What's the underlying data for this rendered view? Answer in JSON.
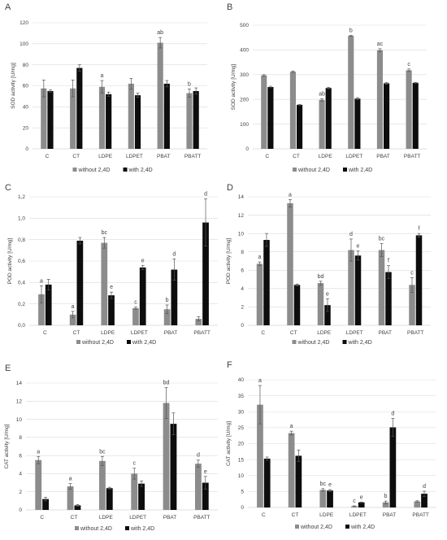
{
  "colors": {
    "without": "#8c8c8c",
    "with": "#0d0d0d",
    "error": "#555555"
  },
  "legend": {
    "without": "without 2,4D",
    "with": "with 2,4D"
  },
  "chart_data": [
    {
      "panel": "A",
      "type": "bar",
      "ylabel": "SOD activity [U/mg]",
      "ylim": [
        0,
        120
      ],
      "yticks": [
        0,
        20,
        40,
        60,
        80,
        100,
        120
      ],
      "categories": [
        "C",
        "CT",
        "LDPE",
        "LDPET",
        "PBAT",
        "PBATT"
      ],
      "series": [
        {
          "name": "without 2,4D",
          "values": [
            57.5,
            57.5,
            59,
            62,
            101,
            53
          ],
          "errors": [
            8,
            8,
            6,
            5,
            5,
            4
          ]
        },
        {
          "name": "with 2,4D",
          "values": [
            55,
            77,
            52,
            51,
            62,
            55
          ],
          "errors": [
            1,
            3,
            2,
            2,
            3,
            3
          ]
        }
      ],
      "labels": [
        "",
        "",
        "a",
        "",
        "ab",
        "b"
      ],
      "legend_position": "bottom"
    },
    {
      "panel": "B",
      "type": "bar",
      "ylabel": "SOD activity [U/mg]",
      "ylim": [
        0,
        500
      ],
      "yticks": [
        0,
        100,
        200,
        300,
        400,
        500
      ],
      "categories": [
        "C",
        "CT",
        "LDPE",
        "LDPET",
        "PBAT",
        "PBATT"
      ],
      "series": [
        {
          "name": "without 2,4D",
          "values": [
            297,
            312,
            198,
            457,
            399,
            318
          ],
          "errors": [
            3,
            3,
            5,
            2,
            6,
            5
          ]
        },
        {
          "name": "with 2,4D",
          "values": [
            250,
            178,
            246,
            203,
            265,
            267
          ],
          "errors": [
            3,
            2,
            3,
            4,
            3,
            2
          ]
        }
      ],
      "labels": [
        "",
        "",
        "ab",
        "b",
        "ac",
        "c"
      ],
      "legend_position": "bottom"
    },
    {
      "panel": "C",
      "type": "bar",
      "ylabel": "POD activity [U/mg]",
      "ylim": [
        0,
        1.2
      ],
      "yticks": [
        "0,0",
        "0,2",
        "0,4",
        "0,6",
        "0,8",
        "1,0",
        "1,2"
      ],
      "categories": [
        "C",
        "CT",
        "LDPE",
        "LDPET",
        "PBAT",
        "PBATT"
      ],
      "series": [
        {
          "name": "without 2,4D",
          "values": [
            0.29,
            0.1,
            0.77,
            0.16,
            0.15,
            0.06
          ],
          "errors": [
            0.08,
            0.03,
            0.05,
            0.01,
            0.04,
            0.02
          ]
        },
        {
          "name": "with 2,4D",
          "values": [
            0.38,
            0.79,
            0.28,
            0.54,
            0.52,
            0.96
          ],
          "errors": [
            0.05,
            0.03,
            0.03,
            0.02,
            0.1,
            0.22
          ]
        }
      ],
      "labels": [
        "a",
        "a",
        "bc",
        "c",
        "b",
        ""
      ],
      "labels_with": [
        "",
        "",
        "e",
        "e",
        "d",
        "d"
      ],
      "legend_position": "bottom"
    },
    {
      "panel": "D",
      "type": "bar",
      "ylabel": "POD activity [U/mg]",
      "ylim": [
        0,
        14
      ],
      "yticks": [
        0,
        2,
        4,
        6,
        8,
        10,
        12,
        14
      ],
      "categories": [
        "C",
        "CT",
        "LDPE",
        "LDPET",
        "PBAT",
        "PBATT"
      ],
      "series": [
        {
          "name": "without 2,4D",
          "values": [
            6.7,
            13.3,
            4.6,
            8.2,
            8.2,
            4.4
          ],
          "errors": [
            0.2,
            0.4,
            0.2,
            1.2,
            0.7,
            0.8
          ]
        },
        {
          "name": "with 2,4D",
          "values": [
            9.3,
            4.4,
            2.2,
            7.6,
            5.8,
            9.8
          ],
          "errors": [
            0.7,
            0.1,
            0.7,
            0.5,
            0.7,
            0.2
          ]
        }
      ],
      "labels": [
        "a",
        "a",
        "bd",
        "d",
        "bc",
        "c"
      ],
      "labels_with": [
        "",
        "",
        "e",
        "e",
        "f",
        "f"
      ],
      "legend_position": "bottom"
    },
    {
      "panel": "E",
      "type": "bar",
      "ylabel": "CAT activity [U/mg]",
      "ylim": [
        0,
        14
      ],
      "yticks": [
        0,
        2,
        4,
        6,
        8,
        10,
        12,
        14
      ],
      "categories": [
        "C",
        "CT",
        "LDPE",
        "LDPET",
        "PBAT",
        "PBATT"
      ],
      "series": [
        {
          "name": "without 2,4D",
          "values": [
            5.5,
            2.6,
            5.4,
            4.0,
            11.8,
            5.1
          ],
          "errors": [
            0.4,
            0.3,
            0.5,
            0.6,
            1.7,
            0.4
          ]
        },
        {
          "name": "with 2,4D",
          "values": [
            1.2,
            0.5,
            2.4,
            2.9,
            9.5,
            3.0
          ],
          "errors": [
            0.2,
            0.1,
            0.1,
            0.3,
            1.2,
            0.7
          ]
        }
      ],
      "labels": [
        "a",
        "a",
        "bc",
        "c",
        "bd",
        "d"
      ],
      "labels_with": [
        "",
        "",
        "",
        "",
        "",
        "e"
      ],
      "legend_position": "bottom"
    },
    {
      "panel": "F",
      "type": "bar",
      "ylabel": "CAT activity [U/mg]",
      "ylim": [
        0,
        40
      ],
      "yticks": [
        0,
        5,
        10,
        15,
        20,
        25,
        30,
        35,
        40
      ],
      "categories": [
        "C",
        "CT",
        "LDPE",
        "LDPET",
        "PBAT",
        "PBATT"
      ],
      "series": [
        {
          "name": "without 2,4D",
          "values": [
            32.2,
            23.3,
            5.5,
            0.4,
            1.6,
            1.9
          ],
          "errors": [
            6.0,
            0.6,
            0.4,
            0.1,
            0.4,
            0.2
          ]
        },
        {
          "name": "with 2,4D",
          "values": [
            15.3,
            16.2,
            5.3,
            1.6,
            25.1,
            4.3
          ],
          "errors": [
            0.5,
            1.8,
            0.3,
            0.1,
            2.8,
            0.8
          ]
        }
      ],
      "labels": [
        "a",
        "a",
        "bc",
        "c",
        "b",
        ""
      ],
      "labels_with": [
        "",
        "",
        "e",
        "e",
        "d",
        "d"
      ],
      "legend_position": "bottom"
    }
  ]
}
